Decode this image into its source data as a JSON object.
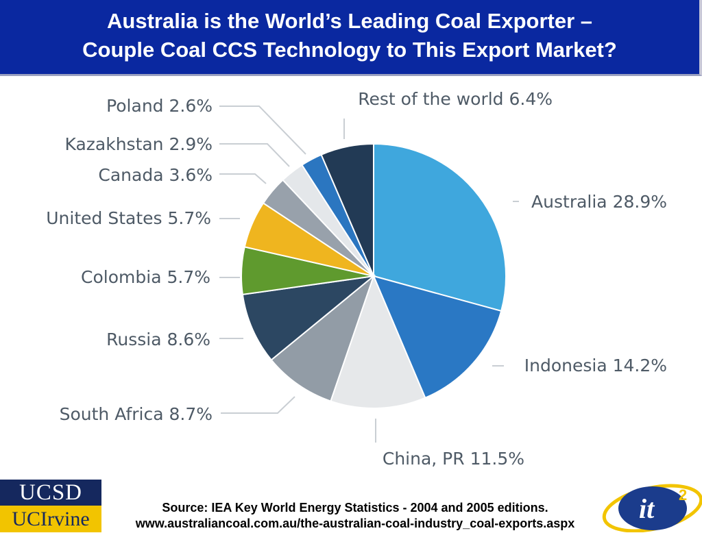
{
  "header": {
    "title_line1": "Australia is the World’s Leading Coal Exporter –",
    "title_line2": "Couple Coal CCS Technology to This Export Market?"
  },
  "chart_data": {
    "type": "pie",
    "title": "",
    "slices": [
      {
        "label": "Australia 28.9%",
        "value": 28.9,
        "color": "#3fa7dd"
      },
      {
        "label": "Indonesia 14.2%",
        "value": 14.2,
        "color": "#2a78c4"
      },
      {
        "label": "China, PR 11.5%",
        "value": 11.5,
        "color": "#e6e8ea"
      },
      {
        "label": "South Africa 8.7%",
        "value": 8.7,
        "color": "#929ca6"
      },
      {
        "label": "Russia 8.6%",
        "value": 8.6,
        "color": "#2c4762"
      },
      {
        "label": "Colombia 5.7%",
        "value": 5.7,
        "color": "#5f9a2e"
      },
      {
        "label": "United States 5.7%",
        "value": 5.7,
        "color": "#efb51f"
      },
      {
        "label": "Canada 3.6%",
        "value": 3.6,
        "color": "#98a1ab"
      },
      {
        "label": "Kazakhstan 2.9%",
        "value": 2.9,
        "color": "#e4e7ea"
      },
      {
        "label": "Poland 2.6%",
        "value": 2.6,
        "color": "#2b76c0"
      },
      {
        "label": "Rest of the world 6.4%",
        "value": 6.4,
        "color": "#223a55"
      }
    ]
  },
  "footer": {
    "source_line1": "Source: IEA Key World Energy Statistics - 2004 and 2005 editions.",
    "source_line2": "www.australiancoal.com.au/the-australian-coal-industry_coal-exports.aspx",
    "logo_ucsd": "UCSD",
    "logo_uci": "UCIrvine",
    "logo_it": "it",
    "logo_sup": "2"
  }
}
